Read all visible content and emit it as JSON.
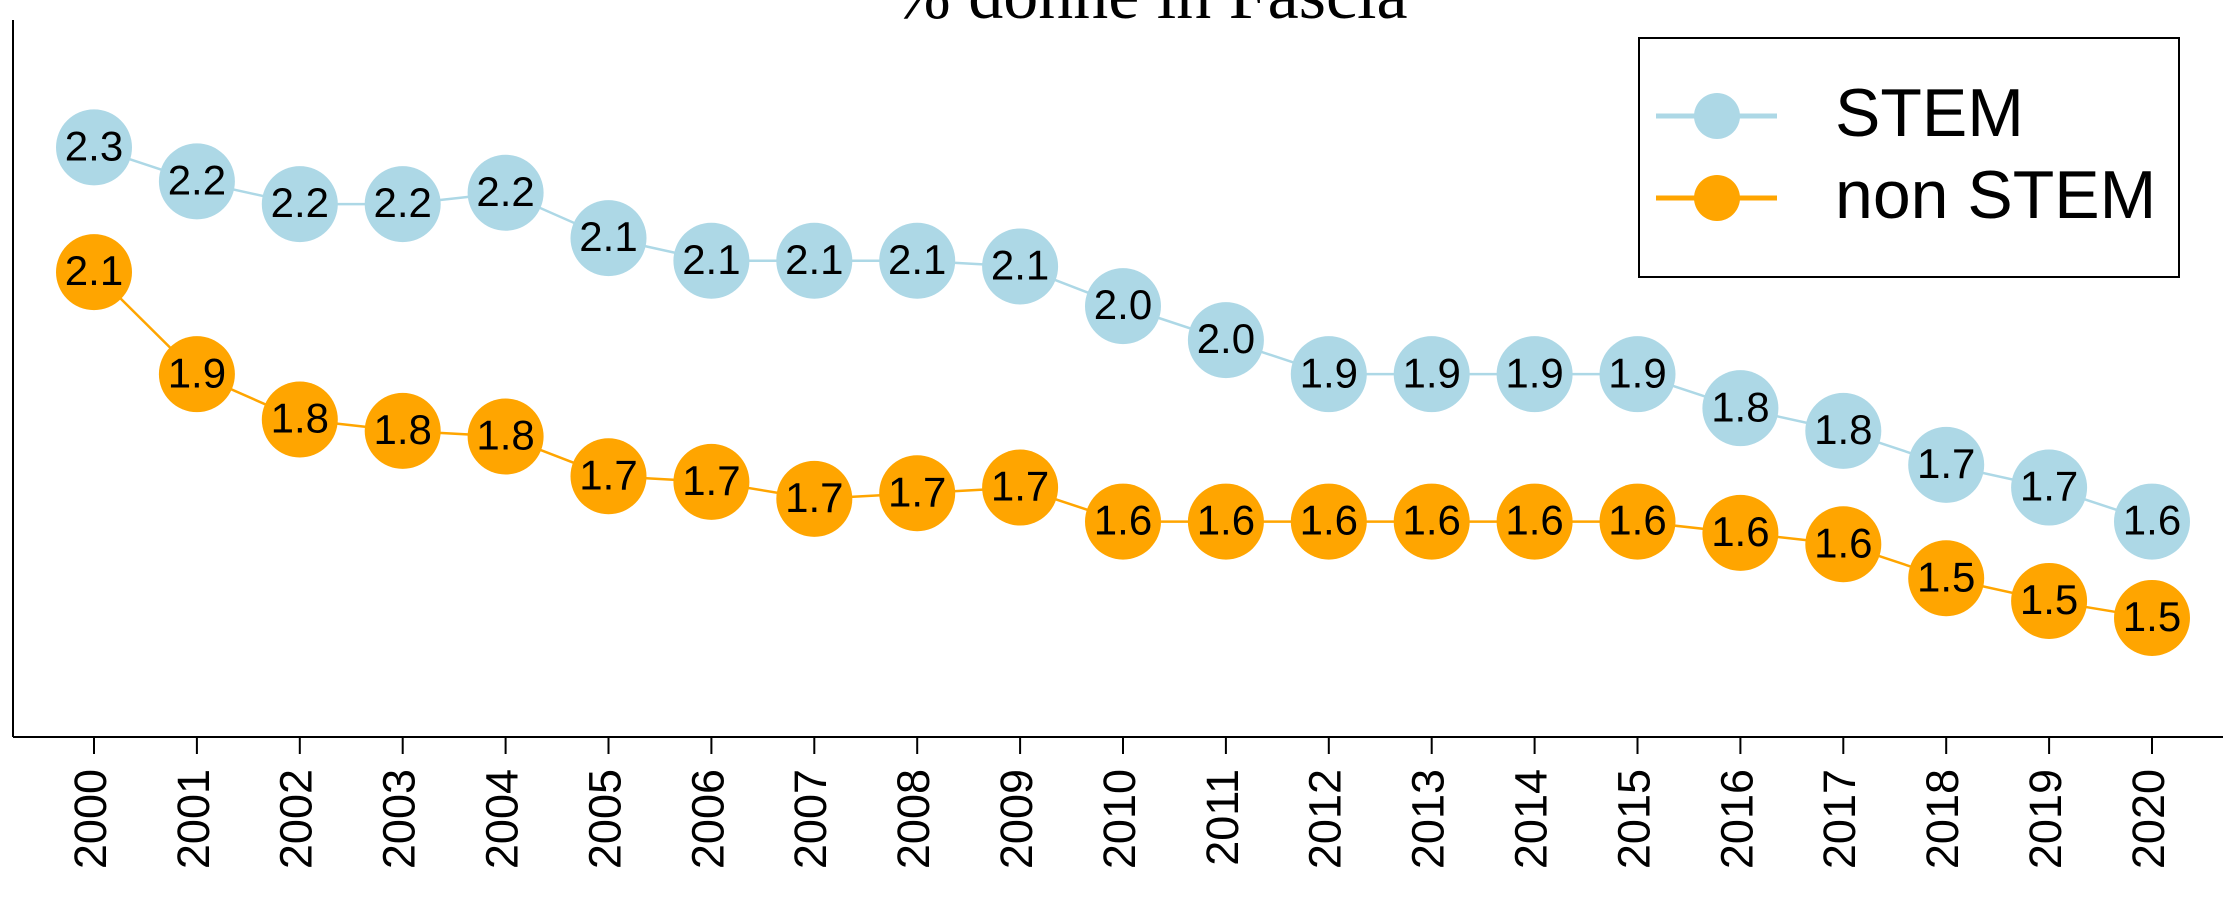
{
  "chart_data": {
    "type": "line",
    "title": "% donne in Fascia",
    "categories": [
      "2000",
      "2001",
      "2002",
      "2003",
      "2004",
      "2005",
      "2006",
      "2007",
      "2008",
      "2009",
      "2010",
      "2011",
      "2012",
      "2013",
      "2014",
      "2015",
      "2016",
      "2017",
      "2018",
      "2019",
      "2020"
    ],
    "series": [
      {
        "name": "STEM",
        "color": "#add8e6",
        "values": [
          2.3,
          2.24,
          2.2,
          2.2,
          2.22,
          2.14,
          2.1,
          2.1,
          2.1,
          2.09,
          2.02,
          1.96,
          1.9,
          1.9,
          1.9,
          1.9,
          1.84,
          1.8,
          1.74,
          1.7,
          1.64
        ],
        "value_labels": [
          "2.3",
          "2.2",
          "2.2",
          "2.2",
          "2.2",
          "2.1",
          "2.1",
          "2.1",
          "2.1",
          "2.1",
          "2.0",
          "2.0",
          "1.9",
          "1.9",
          "1.9",
          "1.9",
          "1.8",
          "1.8",
          "1.7",
          "1.7",
          "1.6"
        ]
      },
      {
        "name": "non STEM",
        "color": "#ffa500",
        "values": [
          2.08,
          1.9,
          1.82,
          1.8,
          1.79,
          1.72,
          1.71,
          1.68,
          1.69,
          1.7,
          1.64,
          1.64,
          1.64,
          1.64,
          1.64,
          1.64,
          1.62,
          1.6,
          1.54,
          1.5,
          1.47
        ],
        "value_labels": [
          "2.1",
          "1.9",
          "1.8",
          "1.8",
          "1.8",
          "1.7",
          "1.7",
          "1.7",
          "1.7",
          "1.7",
          "1.6",
          "1.6",
          "1.6",
          "1.6",
          "1.6",
          "1.6",
          "1.6",
          "1.6",
          "1.5",
          "1.5",
          "1.5"
        ]
      }
    ],
    "ylim": [
      1.26,
      2.56
    ],
    "legend": "top-right"
  }
}
